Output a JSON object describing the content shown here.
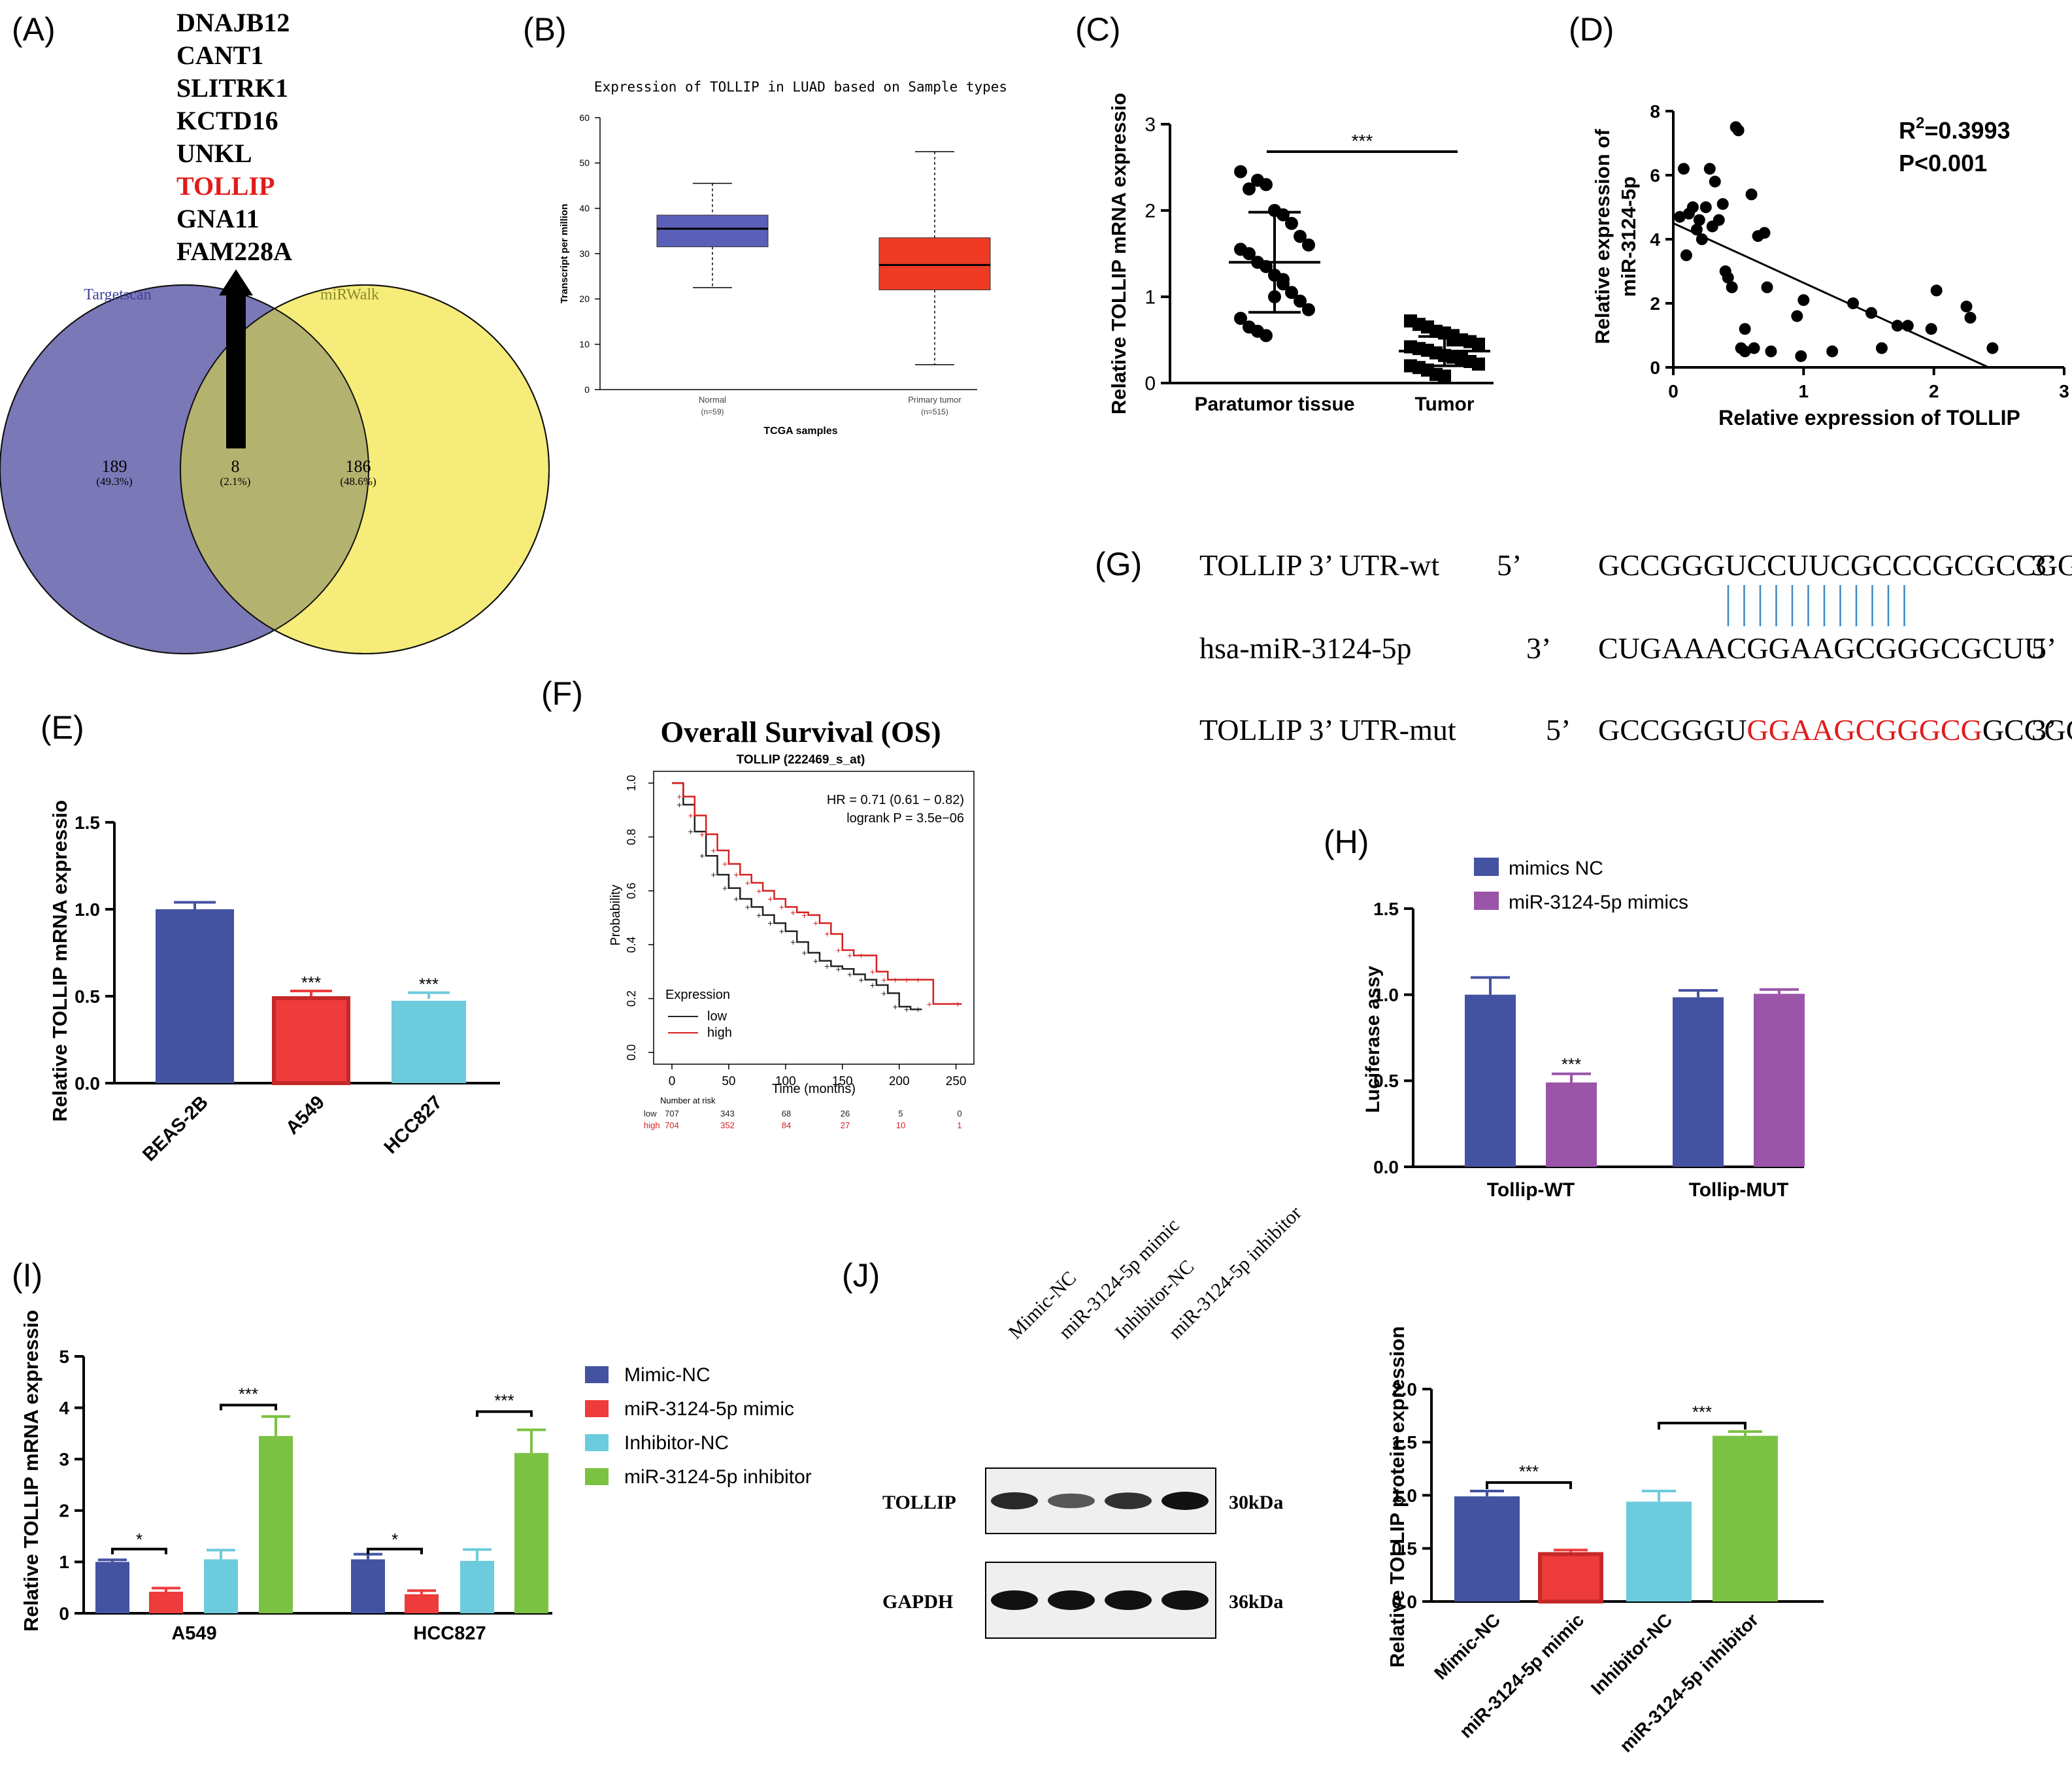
{
  "panels": {
    "A": {
      "label": "(A)",
      "genes": [
        "DNAJB12",
        "CANT1",
        "SLITRK1",
        "KCTD16",
        "UNKL",
        "TOLLIP",
        "GNA11",
        "FAM228A"
      ],
      "highlight_gene": "TOLLIP",
      "left_set": {
        "name": "Targetscan",
        "count": "189",
        "pct": "(49.3%)"
      },
      "overlap": {
        "count": "8",
        "pct": "(2.1%)"
      },
      "right_set": {
        "name": "miRWalk",
        "count": "186",
        "pct": "(48.6%)"
      },
      "colors": {
        "left": "#7b78b8",
        "right": "#f5ec7a",
        "overlap": "#b4b26f",
        "highlight": "#e11b1b"
      }
    },
    "B": {
      "label": "(B)",
      "chart_data": {
        "type": "box",
        "title": "Expression of TOLLIP in LUAD based on Sample types",
        "xlabel": "TCGA samples",
        "ylabel": "Transcript per million",
        "ylim": [
          0,
          60
        ],
        "yticks": [
          0,
          10,
          20,
          30,
          40,
          50,
          60
        ],
        "groups": [
          {
            "name": "Normal",
            "n": "(n=59)",
            "min": 22.5,
            "q1": 31.5,
            "median": 35.5,
            "q3": 38.5,
            "max": 45.5,
            "color": "#5a5fb8"
          },
          {
            "name": "Primary tumor",
            "n": "(n=515)",
            "min": 5.5,
            "q1": 22,
            "median": 27.5,
            "q3": 33.5,
            "max": 52.5,
            "color": "#ee3b24"
          }
        ]
      }
    },
    "C": {
      "label": "(C)",
      "chart_data": {
        "type": "scatter",
        "ylabel": "Relative TOLLIP mRNA expressio",
        "ylim": [
          0,
          3
        ],
        "yticks": [
          0,
          1,
          2,
          3
        ],
        "categories": [
          "Paratumor tissue",
          "Tumor"
        ],
        "significance": "***",
        "groups": [
          {
            "name": "Paratumor tissue",
            "mean": 1.4,
            "sd": 0.58,
            "values": [
              2.45,
              2.25,
              2.35,
              2.3,
              2.0,
              1.95,
              1.85,
              1.7,
              1.6,
              1.55,
              1.5,
              1.4,
              1.35,
              1.25,
              1.2,
              1.05,
              0.95,
              0.85,
              0.75,
              0.65,
              0.6,
              0.55,
              1.0,
              1.15
            ]
          },
          {
            "name": "Tumor",
            "mean": 0.37,
            "sd": 0.17,
            "values": [
              0.72,
              0.68,
              0.65,
              0.6,
              0.58,
              0.55,
              0.5,
              0.48,
              0.45,
              0.42,
              0.4,
              0.38,
              0.35,
              0.32,
              0.3,
              0.28,
              0.25,
              0.22,
              0.2,
              0.18,
              0.15,
              0.1,
              0.08,
              0.5
            ]
          }
        ]
      }
    },
    "D": {
      "label": "(D)",
      "chart_data": {
        "type": "scatter",
        "xlabel": "Relative expression of  TOLLIP",
        "ylabel_line1": "Relative expression of",
        "ylabel_line2": "miR-3124-5p",
        "xlim": [
          0,
          3
        ],
        "ylim": [
          0,
          8
        ],
        "xticks": [
          0,
          1,
          2,
          3
        ],
        "yticks": [
          0,
          2,
          4,
          6,
          8
        ],
        "r2_prefix": "R",
        "r2_sup": "2",
        "r2_value": "=0.3993",
        "p_text": "P<0.001",
        "fit": {
          "x0": 0,
          "y0": 4.5,
          "x1": 2.42,
          "y1": 0
        },
        "x": [
          0.05,
          0.08,
          0.1,
          0.12,
          0.15,
          0.18,
          0.2,
          0.22,
          0.25,
          0.28,
          0.3,
          0.32,
          0.35,
          0.38,
          0.4,
          0.45,
          0.48,
          0.5,
          0.52,
          0.55,
          0.6,
          0.62,
          0.65,
          0.7,
          0.72,
          0.75,
          0.95,
          0.98,
          1.0,
          1.22,
          1.38,
          1.52,
          1.6,
          1.72,
          1.8,
          1.98,
          2.02,
          2.25,
          2.28,
          2.45,
          0.42,
          0.55
        ],
        "y": [
          4.7,
          6.2,
          3.5,
          4.8,
          5.0,
          4.3,
          4.6,
          4.0,
          5.0,
          6.2,
          4.4,
          5.8,
          4.6,
          5.1,
          3.0,
          2.5,
          7.5,
          7.4,
          0.6,
          0.5,
          5.4,
          0.6,
          4.1,
          4.2,
          2.5,
          0.5,
          1.6,
          0.35,
          2.1,
          0.5,
          2.0,
          1.7,
          0.6,
          1.3,
          1.3,
          1.2,
          2.4,
          1.9,
          1.55,
          0.6,
          2.8,
          1.2
        ]
      }
    },
    "E": {
      "label": "(E)",
      "chart_data": {
        "type": "bar",
        "ylabel": "Relative TOLLIP mRNA expressio",
        "ylim": [
          0,
          1.5
        ],
        "yticks": [
          0.0,
          0.5,
          1.0,
          1.5
        ],
        "categories": [
          "BEAS-2B",
          "A549",
          "HCC827"
        ],
        "values": [
          1.0,
          0.5,
          0.485
        ],
        "errors": [
          0.04,
          0.03,
          0.035
        ],
        "significance": [
          "",
          "***",
          "***"
        ],
        "colors": [
          "#4452a2",
          "#ee3b3b",
          "#6ccbdc"
        ]
      }
    },
    "F": {
      "label": "(F)",
      "chart_data": {
        "type": "line",
        "title": "Overall Survival (OS)",
        "subtitle": "TOLLIP (222469_s_at)",
        "xlabel": "Time (months)",
        "ylabel": "Probability",
        "xlim": [
          0,
          260
        ],
        "ylim": [
          0,
          1.0
        ],
        "xticks": [
          0,
          50,
          100,
          150,
          200,
          250
        ],
        "yticks": [
          0.0,
          0.2,
          0.4,
          0.6,
          0.8,
          1.0
        ],
        "hr_text": "HR = 0.71 (0.61 − 0.82)",
        "logrank_text": "logrank P = 3.5e−06",
        "legend_title": "Expression",
        "series": [
          {
            "name": "low",
            "color": "#222222",
            "x": [
              0,
              10,
              20,
              30,
              40,
              50,
              60,
              70,
              80,
              90,
              100,
              110,
              120,
              130,
              140,
              150,
              160,
              170,
              180,
              190,
              200,
              210,
              220
            ],
            "y": [
              1.0,
              0.92,
              0.82,
              0.73,
              0.66,
              0.61,
              0.57,
              0.54,
              0.51,
              0.48,
              0.45,
              0.41,
              0.37,
              0.34,
              0.32,
              0.31,
              0.29,
              0.27,
              0.25,
              0.22,
              0.17,
              0.16,
              0.16
            ]
          },
          {
            "name": "high",
            "color": "#d62020",
            "x": [
              0,
              10,
              20,
              30,
              40,
              50,
              60,
              70,
              80,
              90,
              100,
              110,
              120,
              130,
              140,
              150,
              160,
              170,
              180,
              190,
              200,
              210,
              220,
              230,
              255
            ],
            "y": [
              1.0,
              0.95,
              0.88,
              0.81,
              0.75,
              0.7,
              0.66,
              0.63,
              0.6,
              0.57,
              0.54,
              0.52,
              0.51,
              0.48,
              0.44,
              0.38,
              0.36,
              0.36,
              0.3,
              0.27,
              0.27,
              0.27,
              0.27,
              0.18,
              0.18
            ]
          }
        ],
        "risk_title": "Number at risk",
        "risk_rows": [
          {
            "name": "low",
            "color": "#222222",
            "values": [
              "707",
              "343",
              "68",
              "26",
              "5",
              "0"
            ]
          },
          {
            "name": "high",
            "color": "#d62020",
            "values": [
              "704",
              "352",
              "84",
              "27",
              "10",
              "1"
            ]
          }
        ]
      }
    },
    "G": {
      "label": "(G)",
      "rows": [
        {
          "name": "TOLLIP 3’  UTR-wt",
          "end1": "5’",
          "seq_a": "GCCGGGUCCUUCGCCCGCGCCGG",
          "seq_b": "",
          "seq_c": "",
          "end2": "3’"
        },
        {
          "name": "hsa-miR-3124-5p",
          "end1": "3’",
          "seq_a": "CUGAAACGGAAGCGGGCGCUU",
          "seq_b": "",
          "seq_c": "",
          "end2": "5’"
        },
        {
          "name": "TOLLIP 3’  UTR-mut",
          "end1": "5’",
          "seq_a": "GCCGGGU",
          "seq_b": "GGAAGCGGGCG",
          "seq_c": "GCCGG",
          "end2": "3’"
        }
      ],
      "mutant_color": "#e11b1b",
      "pair_color": "#3a88c8",
      "pair_count": 12
    },
    "H": {
      "label": "(H)",
      "chart_data": {
        "type": "bar",
        "ylabel": "Luciferase assy",
        "ylim": [
          0,
          1.5
        ],
        "yticks": [
          0.0,
          0.5,
          1.0,
          1.5
        ],
        "categories": [
          "Tollip-WT",
          "Tollip-MUT"
        ],
        "series": [
          {
            "name": "mimics NC",
            "color": "#4452a2",
            "values": [
              1.0,
              0.985
            ],
            "errors": [
              0.1,
              0.04
            ]
          },
          {
            "name": "miR-3124-5p mimics",
            "color": "#9b55a8",
            "values": [
              0.49,
              1.005
            ],
            "errors": [
              0.05,
              0.025
            ]
          }
        ],
        "significance": "***"
      }
    },
    "I": {
      "label": "(I)",
      "chart_data": {
        "type": "bar",
        "ylabel": "Relative TOLLIP mRNA expressio",
        "ylim": [
          0,
          5
        ],
        "yticks": [
          0,
          1,
          2,
          3,
          4,
          5
        ],
        "categories": [
          "A549",
          "HCC827"
        ],
        "series": [
          {
            "name": "Mimic-NC",
            "color": "#4452a2",
            "values": [
              1.0,
              1.05
            ],
            "errors": [
              0.04,
              0.1
            ]
          },
          {
            "name": "miR-3124-5p mimic",
            "color": "#ee3b3b",
            "values": [
              0.42,
              0.37
            ],
            "errors": [
              0.07,
              0.07
            ]
          },
          {
            "name": "Inhibitor-NC",
            "color": "#6ccbdc",
            "values": [
              1.05,
              1.02
            ],
            "errors": [
              0.18,
              0.22
            ]
          },
          {
            "name": "miR-3124-5p inhibitor",
            "color": "#7cc242",
            "values": [
              3.45,
              3.12
            ],
            "errors": [
              0.38,
              0.45
            ]
          }
        ],
        "significance_low": "*",
        "significance_high": "***"
      }
    },
    "J": {
      "label": "(J)",
      "blot_lanes": [
        "Mimic-NC",
        "miR-3124-5p mimic",
        "Inhibitor-NC",
        "miR-3124-5p inhibitor"
      ],
      "blot_rows": [
        {
          "name": "TOLLIP",
          "size": "30kDa",
          "intensity": [
            0.85,
            0.55,
            0.8,
            1.0
          ]
        },
        {
          "name": "GAPDH",
          "size": "36kDa",
          "intensity": [
            1.0,
            1.0,
            1.0,
            1.0
          ]
        }
      ],
      "chart_data": {
        "type": "bar",
        "ylabel": "Relative TOLLIP protein  expression",
        "ylim": [
          0,
          2.0
        ],
        "yticks": [
          0.0,
          0.5,
          1.0,
          1.5,
          2.0
        ],
        "categories": [
          "Mimic-NC",
          "miR-3124-5p mimic",
          "Inhibitor-NC",
          "miR-3124-5p inhibitor"
        ],
        "values": [
          0.99,
          0.465,
          0.94,
          1.56
        ],
        "errors": [
          0.05,
          0.02,
          0.1,
          0.04
        ],
        "colors": [
          "#4452a2",
          "#ee3b3b",
          "#6ccbdc",
          "#7cc242"
        ],
        "significance": "***"
      }
    }
  }
}
